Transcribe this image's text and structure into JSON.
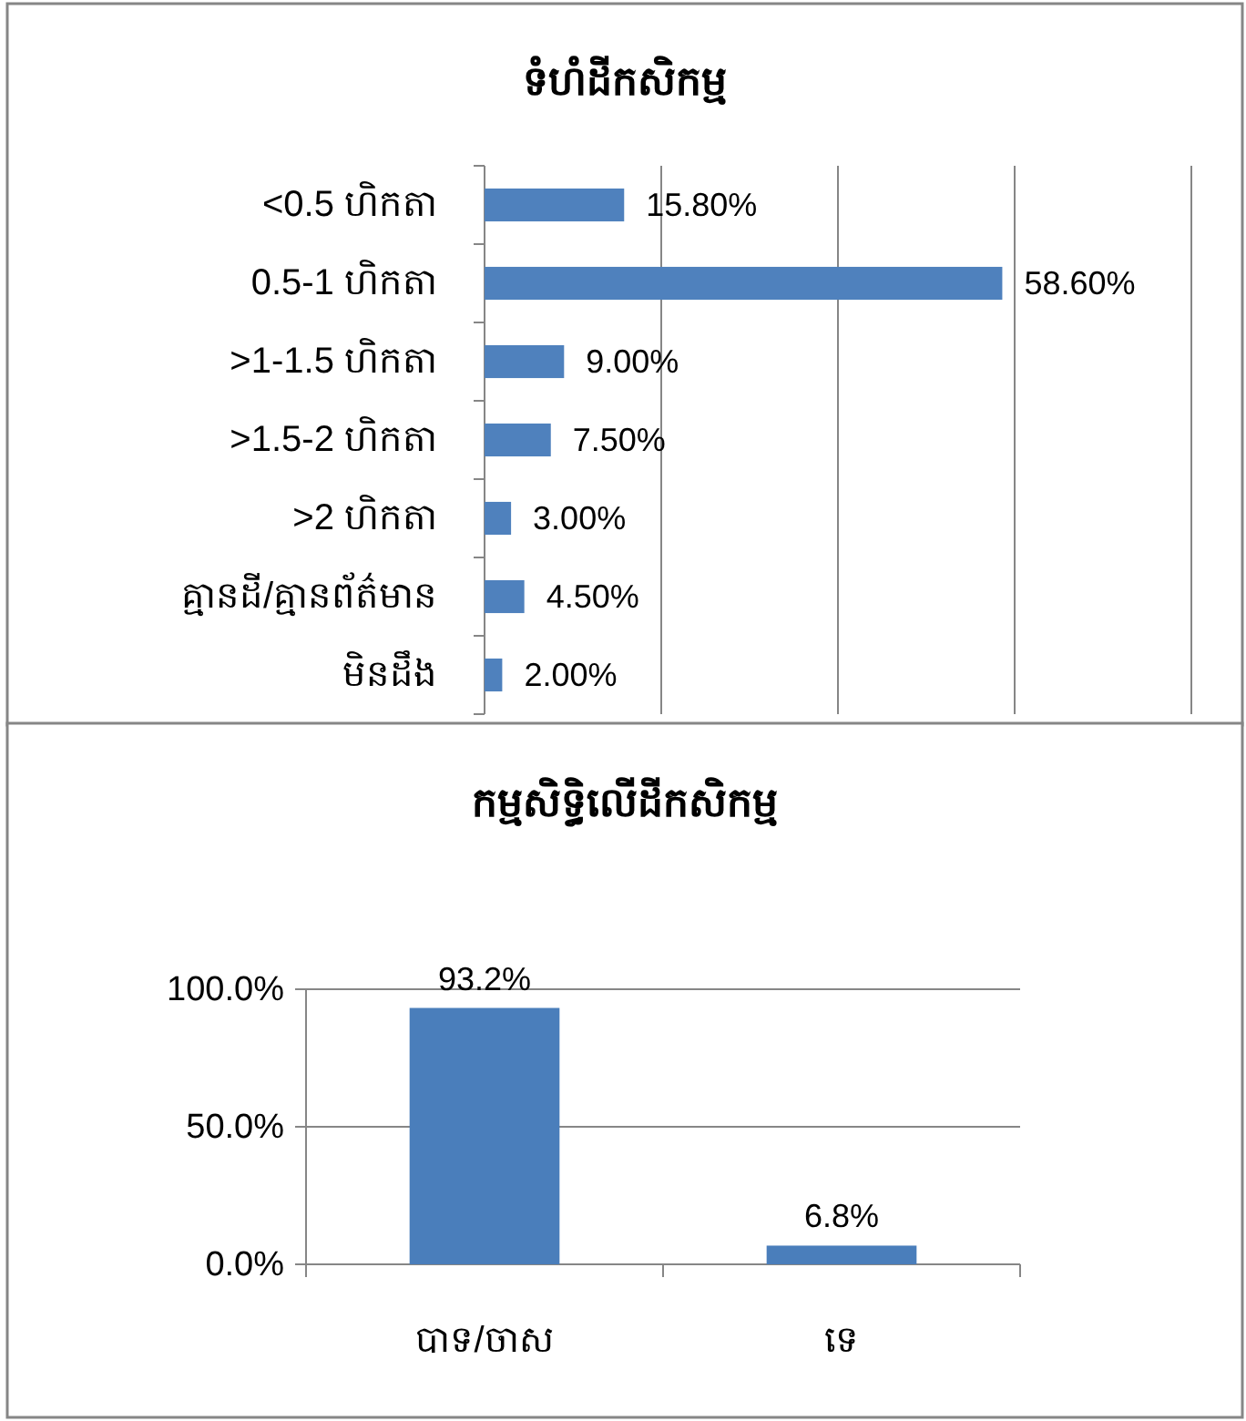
{
  "chart_data": [
    {
      "type": "bar",
      "orientation": "horizontal",
      "title": "ទំហំដីកសិកម្ម",
      "categories": [
        "<0.5 ហិកតា",
        "0.5-1 ហិកតា",
        ">1-1.5 ហិកតា",
        ">1.5-2 ហិកតា",
        ">2 ហិកតា",
        "គ្មានដី/គ្មានព័ត៌មាន",
        "មិនដឹង"
      ],
      "values": [
        15.8,
        58.6,
        9.0,
        7.5,
        3.0,
        4.5,
        2.0
      ],
      "value_labels": [
        "15.80%",
        "58.60%",
        "9.00%",
        "7.50%",
        "3.00%",
        "4.50%",
        "2.00%"
      ],
      "color": "#4f81bd",
      "xlim": [
        0,
        80
      ],
      "xticks": [
        {
          "value": 0,
          "label": null
        },
        {
          "value": 20,
          "label": null
        },
        {
          "value": 40,
          "label": null
        },
        {
          "value": 60,
          "label": null
        },
        {
          "value": 80,
          "label": null
        }
      ],
      "grid": "x",
      "tick_labels": "y"
    },
    {
      "type": "bar",
      "title": "កម្មសិទ្ធិលើដីកសិកម្ម",
      "categories": [
        "បាទ/ចាស",
        "ទេ"
      ],
      "values": [
        93.2,
        6.8
      ],
      "value_labels": [
        "93.2%",
        "6.8%"
      ],
      "color": "#4a7ebb",
      "ylim": [
        0,
        100
      ],
      "yticks": [
        {
          "value": 0,
          "label": "0.0%"
        },
        {
          "value": 50,
          "label": "50.0%"
        },
        {
          "value": 100,
          "label": "100.0%"
        }
      ],
      "grid": "y"
    }
  ]
}
